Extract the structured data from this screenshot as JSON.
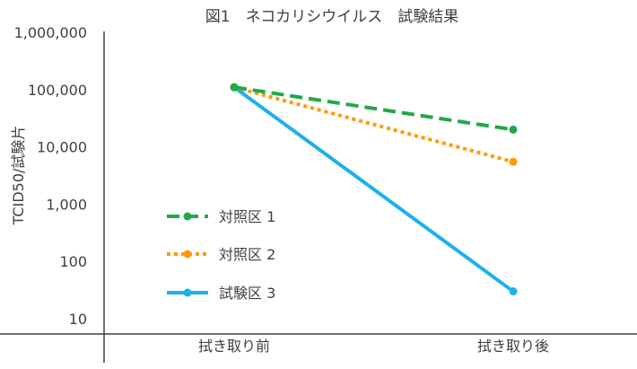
{
  "chart_data": {
    "type": "line",
    "title": "図1　ネコカリシウイルス　試験結果",
    "xlabel": "",
    "ylabel": "TCID50/試験片",
    "y_scale": "log",
    "ylim": [
      10,
      1000000
    ],
    "y_ticks": [
      {
        "value": 10,
        "label": "10"
      },
      {
        "value": 100,
        "label": "100"
      },
      {
        "value": 1000,
        "label": "1,000"
      },
      {
        "value": 10000,
        "label": "10,000"
      },
      {
        "value": 100000,
        "label": "100,000"
      },
      {
        "value": 1000000,
        "label": "1,000,000"
      }
    ],
    "categories": [
      "拭き取り前",
      "拭き取り後"
    ],
    "grid": false,
    "legend_position": "left-center",
    "series": [
      {
        "name": "対照区 1",
        "values": [
          110000,
          20000
        ],
        "color": "#22a846",
        "line_style": "dashed"
      },
      {
        "name": "対照区 2",
        "values": [
          110000,
          5500
        ],
        "color": "#ff9a0a",
        "line_style": "dotted"
      },
      {
        "name": "試験区 3",
        "values": [
          110000,
          30
        ],
        "color": "#1fb0ee",
        "line_style": "solid"
      }
    ]
  }
}
